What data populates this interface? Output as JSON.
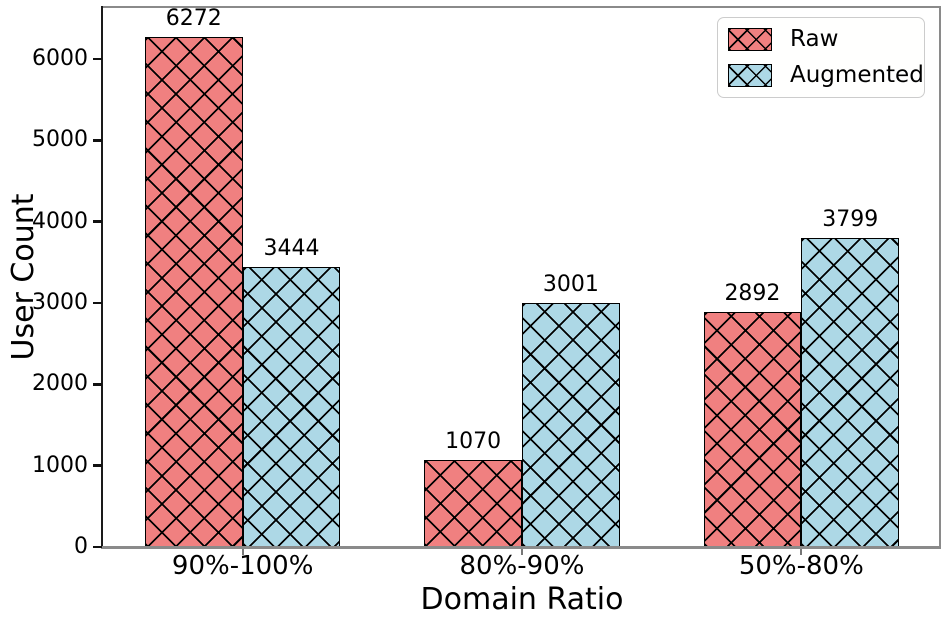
{
  "chart_data": {
    "type": "bar",
    "title": "",
    "xlabel": "Domain Ratio",
    "ylabel": "User Count",
    "categories": [
      "90%-100%",
      "80%-90%",
      "50%-80%"
    ],
    "series": [
      {
        "name": "Raw",
        "color": "#F08080",
        "values": [
          6272,
          1070,
          2892
        ]
      },
      {
        "name": "Augmented",
        "color": "#ADD8E6",
        "values": [
          3444,
          3001,
          3799
        ]
      }
    ],
    "bar_labels": [
      [
        "6272",
        "1070",
        "2892"
      ],
      [
        "3444",
        "3001",
        "3799"
      ]
    ],
    "yticks": [
      0,
      1000,
      2000,
      3000,
      4000,
      5000,
      6000
    ],
    "ylim": [
      0,
      6640
    ],
    "grid": false,
    "hatch": "x",
    "bar_edge_color": "#000000",
    "legend": {
      "position": "upper-right",
      "entries": [
        "Raw",
        "Augmented"
      ]
    }
  }
}
